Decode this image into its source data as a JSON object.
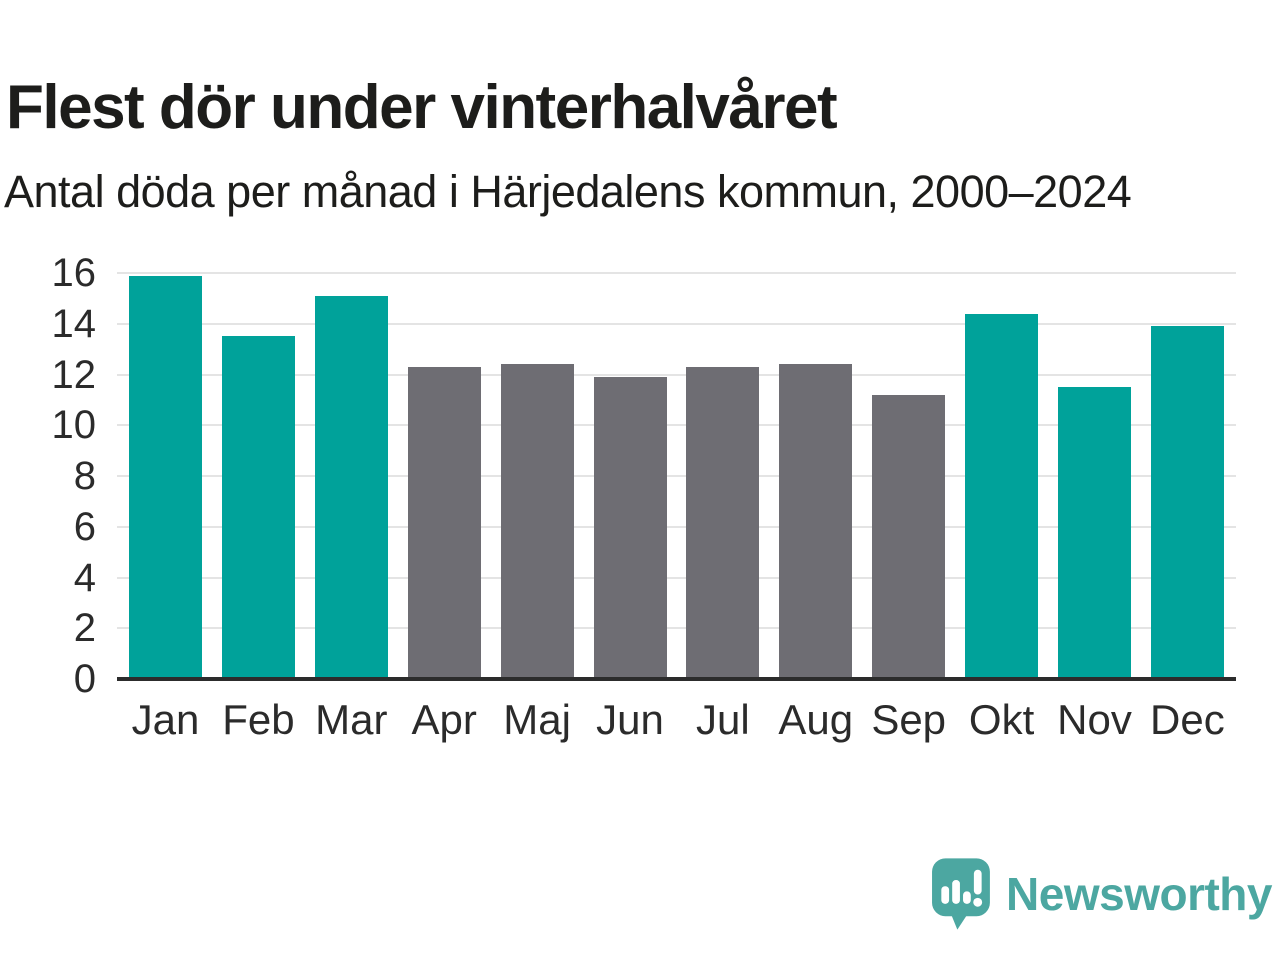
{
  "header": {
    "title": "Flest dör under vinterhalvåret",
    "subtitle": "Antal döda per månad i Härjedalens kommun, 2000–2024"
  },
  "chart_data": {
    "type": "bar",
    "title": "Flest dör under vinterhalvåret",
    "subtitle": "Antal döda per månad i Härjedalens kommun, 2000–2024",
    "categories": [
      "Jan",
      "Feb",
      "Mar",
      "Apr",
      "Maj",
      "Jun",
      "Jul",
      "Aug",
      "Sep",
      "Okt",
      "Nov",
      "Dec"
    ],
    "values": [
      15.9,
      13.5,
      15.1,
      12.3,
      12.4,
      11.9,
      12.3,
      12.4,
      11.2,
      14.4,
      11.5,
      13.9
    ],
    "bar_color_keys": [
      "winter",
      "winter",
      "winter",
      "summer",
      "summer",
      "summer",
      "summer",
      "summer",
      "summer",
      "winter",
      "winter",
      "winter"
    ],
    "palette": {
      "winter": "#00a29a",
      "summer": "#6e6d73"
    },
    "xlabel": "",
    "ylabel": "",
    "ylim": [
      0,
      16
    ],
    "yticks": [
      0,
      2,
      4,
      6,
      8,
      10,
      12,
      14,
      16
    ],
    "grid": true,
    "gridline_color": "#e4e4e4",
    "axis_line_color": "#2c2c2c",
    "legend": "none"
  },
  "branding": {
    "logo_text": "Newsworthy",
    "logo_color": "#4ca7a1",
    "logo_icon": "bar-chart-speech-bubble"
  }
}
